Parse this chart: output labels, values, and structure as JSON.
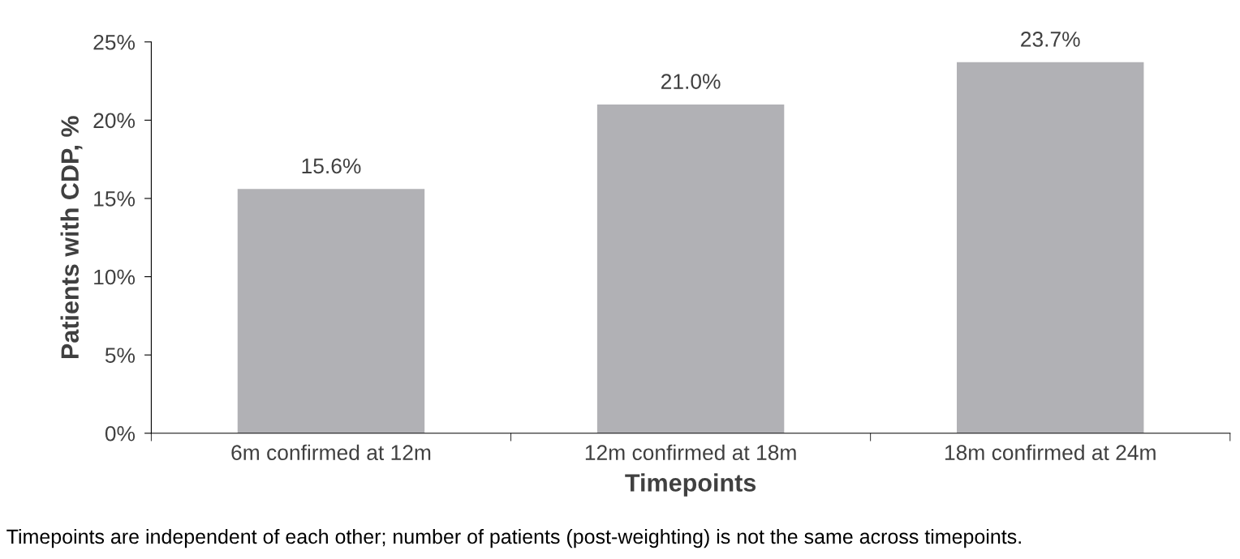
{
  "chart_data": {
    "type": "bar",
    "categories": [
      "6m confirmed at 12m",
      "12m confirmed at 18m",
      "18m confirmed at 24m"
    ],
    "values": [
      15.6,
      21.0,
      23.7
    ],
    "value_labels": [
      "15.6%",
      "21.0%",
      "23.7%"
    ],
    "color": "#b1b1b5",
    "xlabel": "Timepoints",
    "ylabel": "Patients with CDP, %",
    "ylim": [
      0,
      25
    ],
    "yticks": [
      {
        "value": 0,
        "label": "0%"
      },
      {
        "value": 5,
        "label": "5%"
      },
      {
        "value": 10,
        "label": "10%"
      },
      {
        "value": 15,
        "label": "15%"
      },
      {
        "value": 20,
        "label": "20%"
      },
      {
        "value": 25,
        "label": "25%"
      }
    ],
    "grid": false,
    "annotations": [
      "Timepoints are independent of each other; number of patients (post-weighting) is not the same across timepoints."
    ]
  }
}
